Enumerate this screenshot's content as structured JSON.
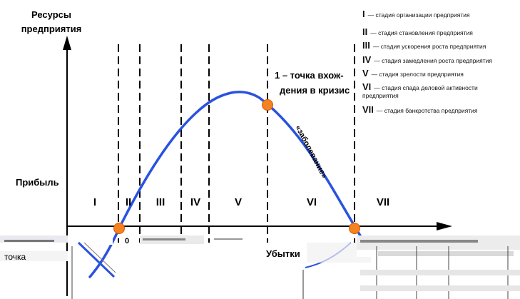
{
  "y_axis_title_line1": "Ресурсы",
  "y_axis_title_line2": "предприятия",
  "profit_label": "Прибыль",
  "losses_label": "Убытки",
  "crisis_point_line1": "1 – точка вхож-",
  "crisis_point_line2": "дения в кризис",
  "disease_label": "«заболевание»",
  "zero_label": "0",
  "point_label_fragment": "точка",
  "stages": [
    {
      "numeral": "I",
      "description": "— стадия организации предприятия"
    },
    {
      "numeral": "II",
      "description": "— стадия становления предприятия"
    },
    {
      "numeral": "III",
      "description": "— стадия ускорения роста предприятия"
    },
    {
      "numeral": "IV",
      "description": "— стадия замедления роста предприятия"
    },
    {
      "numeral": "V",
      "description": "— стадия зрелости предприятия"
    },
    {
      "numeral": "VI",
      "description": "— стадия спада деловой активности предприятия"
    },
    {
      "numeral": "VII",
      "description": "— стадия банкротства предприятия"
    }
  ],
  "colors": {
    "curve": "#2a52e0",
    "point": "#f58220",
    "point_outline": "#d65a00",
    "axis": "#000000"
  }
}
